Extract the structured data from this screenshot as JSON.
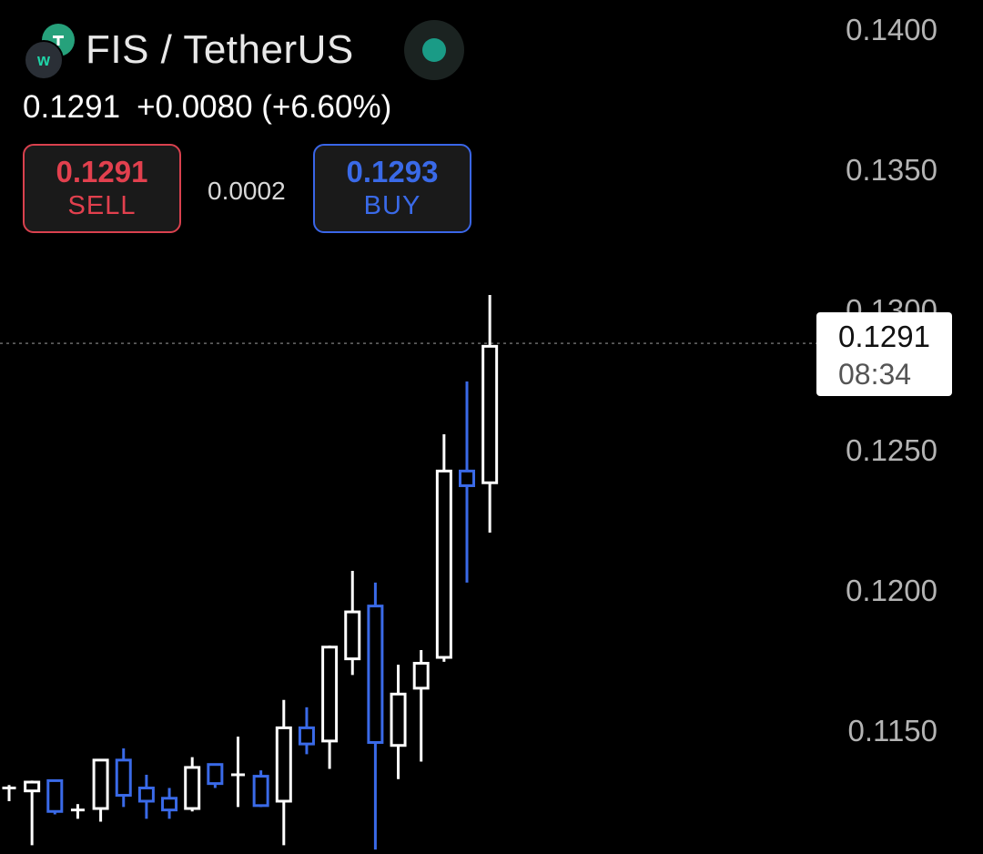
{
  "header": {
    "pair": "FIS / TetherUS",
    "last_price": "0.1291",
    "change": "+0.0080 (+6.60%)",
    "sell_price": "0.1291",
    "sell_label": "SELL",
    "buy_price": "0.1293",
    "buy_label": "BUY",
    "spread": "0.0002"
  },
  "price_tag": {
    "value": "0.1291",
    "countdown": "08:34"
  },
  "colors": {
    "up": "#ffffff",
    "down": "#3a6ae8",
    "sell": "#e2404e",
    "buy": "#3a6ae8",
    "status": "#1a9b86",
    "axis_text": "#b4b4b4"
  },
  "chart_data": {
    "type": "candlestick",
    "y_ticks": [
      "0.1400",
      "0.1350",
      "0.1300",
      "0.1250",
      "0.1200",
      "0.1150"
    ],
    "ylim": [
      0.1117,
      0.1408
    ],
    "current_price": 0.1291,
    "candles": [
      {
        "o": 0.11395,
        "h": 0.11405,
        "l": 0.1135,
        "c": 0.11395
      },
      {
        "o": 0.11385,
        "h": 0.1142,
        "l": 0.112,
        "c": 0.11415
      },
      {
        "o": 0.1142,
        "h": 0.1142,
        "l": 0.11305,
        "c": 0.11315
      },
      {
        "o": 0.1132,
        "h": 0.1134,
        "l": 0.1129,
        "c": 0.1132
      },
      {
        "o": 0.11325,
        "h": 0.1149,
        "l": 0.1128,
        "c": 0.1149
      },
      {
        "o": 0.1149,
        "h": 0.1153,
        "l": 0.1133,
        "c": 0.1137
      },
      {
        "o": 0.11395,
        "h": 0.1144,
        "l": 0.1129,
        "c": 0.1135
      },
      {
        "o": 0.1136,
        "h": 0.11395,
        "l": 0.1129,
        "c": 0.1132
      },
      {
        "o": 0.11325,
        "h": 0.115,
        "l": 0.11315,
        "c": 0.11465
      },
      {
        "o": 0.11475,
        "h": 0.11475,
        "l": 0.11395,
        "c": 0.1141
      },
      {
        "o": 0.1144,
        "h": 0.1157,
        "l": 0.1133,
        "c": 0.1144
      },
      {
        "o": 0.11435,
        "h": 0.11455,
        "l": 0.1133,
        "c": 0.11335
      },
      {
        "o": 0.1135,
        "h": 0.11695,
        "l": 0.112,
        "c": 0.116
      },
      {
        "o": 0.116,
        "h": 0.1167,
        "l": 0.1151,
        "c": 0.11545
      },
      {
        "o": 0.11555,
        "h": 0.1188,
        "l": 0.1146,
        "c": 0.11875
      },
      {
        "o": 0.11835,
        "h": 0.12135,
        "l": 0.1178,
        "c": 0.11995
      },
      {
        "o": 0.12015,
        "h": 0.12095,
        "l": 0.11185,
        "c": 0.1155
      },
      {
        "o": 0.1154,
        "h": 0.11815,
        "l": 0.11425,
        "c": 0.11715
      },
      {
        "o": 0.11735,
        "h": 0.11865,
        "l": 0.11485,
        "c": 0.1182
      },
      {
        "o": 0.1184,
        "h": 0.126,
        "l": 0.11825,
        "c": 0.12475
      },
      {
        "o": 0.12475,
        "h": 0.1278,
        "l": 0.12095,
        "c": 0.12425
      },
      {
        "o": 0.12435,
        "h": 0.13075,
        "l": 0.12265,
        "c": 0.129
      }
    ]
  }
}
